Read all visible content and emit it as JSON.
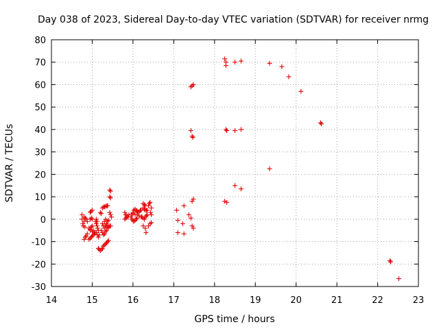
{
  "chart_data": {
    "type": "scatter",
    "title": "Day 038 of 2023, Sidereal Day-to-day VTEC variation (SDTVAR) for receiver nrmg",
    "xlabel": "GPS time / hours",
    "ylabel": "SDTVAR / TECUs",
    "xlim": [
      14,
      23
    ],
    "ylim": [
      -30,
      80
    ],
    "xticks": [
      14,
      15,
      16,
      17,
      18,
      19,
      20,
      21,
      22,
      23
    ],
    "yticks": [
      -30,
      -20,
      -10,
      0,
      10,
      20,
      30,
      40,
      50,
      60,
      70,
      80
    ],
    "grid": true,
    "marker": "+",
    "marker_color": "#e00000",
    "series": [
      {
        "name": "SDTVAR",
        "points": [
          [
            14.75,
            2
          ],
          [
            14.75,
            0
          ],
          [
            14.77,
            -2
          ],
          [
            14.78,
            -3
          ],
          [
            14.8,
            -1
          ],
          [
            14.82,
            -3.5
          ],
          [
            14.8,
            -9
          ],
          [
            14.83,
            -8
          ],
          [
            14.85,
            -7.5
          ],
          [
            14.88,
            -6.5
          ],
          [
            14.8,
            1
          ],
          [
            14.83,
            0.5
          ],
          [
            14.85,
            0
          ],
          [
            14.88,
            -1
          ],
          [
            14.95,
            3
          ],
          [
            14.97,
            3.5
          ],
          [
            15.0,
            4
          ],
          [
            14.95,
            0
          ],
          [
            14.98,
            0.5
          ],
          [
            15.0,
            0
          ],
          [
            14.92,
            -4
          ],
          [
            14.95,
            -4.5
          ],
          [
            14.98,
            -3.5
          ],
          [
            15.0,
            -3
          ],
          [
            14.92,
            -9
          ],
          [
            14.95,
            -8.5
          ],
          [
            14.98,
            -8
          ],
          [
            15.0,
            -7.5
          ],
          [
            15.03,
            -7
          ],
          [
            15.05,
            -6.5
          ],
          [
            15.07,
            -6
          ],
          [
            14.95,
            -5
          ],
          [
            15.0,
            -5.5
          ],
          [
            15.03,
            -5
          ],
          [
            15.08,
            -1
          ],
          [
            15.1,
            -2
          ],
          [
            15.12,
            -3
          ],
          [
            15.13,
            -4
          ],
          [
            15.15,
            -5
          ],
          [
            15.1,
            0
          ],
          [
            15.12,
            -1
          ],
          [
            15.1,
            -6
          ],
          [
            15.13,
            -7
          ],
          [
            15.15,
            -8
          ],
          [
            15.17,
            -7
          ],
          [
            15.15,
            -13
          ],
          [
            15.17,
            -13.5
          ],
          [
            15.2,
            -14
          ],
          [
            15.23,
            -13.5
          ],
          [
            15.25,
            -13
          ],
          [
            15.27,
            -12
          ],
          [
            15.3,
            -11.5
          ],
          [
            15.33,
            -11
          ],
          [
            15.35,
            -10.5
          ],
          [
            15.38,
            -10
          ],
          [
            15.4,
            -9.5
          ],
          [
            15.2,
            3
          ],
          [
            15.22,
            2.5
          ],
          [
            15.25,
            5
          ],
          [
            15.28,
            5.5
          ],
          [
            15.3,
            5.5
          ],
          [
            15.33,
            5.8
          ],
          [
            15.36,
            6
          ],
          [
            15.38,
            6
          ],
          [
            15.25,
            -2
          ],
          [
            15.27,
            -3
          ],
          [
            15.3,
            -4
          ],
          [
            15.32,
            -3
          ],
          [
            15.35,
            -2
          ],
          [
            15.37,
            -1
          ],
          [
            15.4,
            -0.5
          ],
          [
            15.22,
            -5
          ],
          [
            15.25,
            -6
          ],
          [
            15.28,
            -7
          ],
          [
            15.3,
            -6.5
          ],
          [
            15.33,
            -5.5
          ],
          [
            15.35,
            -5
          ],
          [
            15.38,
            -4
          ],
          [
            15.3,
            -1
          ],
          [
            15.33,
            0
          ],
          [
            15.35,
            -2.5
          ],
          [
            15.38,
            -3.5
          ],
          [
            15.4,
            -3.5
          ],
          [
            15.43,
            -3
          ],
          [
            15.45,
            -3
          ],
          [
            15.43,
            13
          ],
          [
            15.45,
            12.5
          ],
          [
            15.43,
            10
          ],
          [
            15.45,
            9.5
          ],
          [
            15.43,
            3
          ],
          [
            15.45,
            2
          ],
          [
            15.47,
            1
          ],
          [
            15.8,
            3
          ],
          [
            15.82,
            2
          ],
          [
            15.85,
            1.5
          ],
          [
            15.88,
            1
          ],
          [
            15.8,
            0
          ],
          [
            15.83,
            0.5
          ],
          [
            15.85,
            1
          ],
          [
            15.9,
            2
          ],
          [
            15.95,
            1
          ],
          [
            15.97,
            0
          ],
          [
            16.0,
            -0.5
          ],
          [
            16.02,
            -1
          ],
          [
            16.05,
            -0.5
          ],
          [
            16.08,
            0
          ],
          [
            16.1,
            0.5
          ],
          [
            16.0,
            3
          ],
          [
            16.02,
            4
          ],
          [
            16.05,
            4.5
          ],
          [
            16.08,
            4
          ],
          [
            16.1,
            3.5
          ],
          [
            16.12,
            3
          ],
          [
            16.15,
            3.5
          ],
          [
            16.18,
            4
          ],
          [
            16.2,
            4
          ],
          [
            15.97,
            2
          ],
          [
            16.0,
            2.5
          ],
          [
            16.05,
            2
          ],
          [
            16.1,
            2
          ],
          [
            16.15,
            1.5
          ],
          [
            16.2,
            1
          ],
          [
            16.25,
            7
          ],
          [
            16.28,
            6.5
          ],
          [
            16.3,
            6
          ],
          [
            16.25,
            5
          ],
          [
            16.28,
            4.5
          ],
          [
            16.3,
            4
          ],
          [
            16.33,
            4
          ],
          [
            16.22,
            1
          ],
          [
            16.25,
            0.5
          ],
          [
            16.28,
            0
          ],
          [
            16.3,
            1
          ],
          [
            16.33,
            1.5
          ],
          [
            16.35,
            2
          ],
          [
            16.35,
            4
          ],
          [
            16.38,
            6
          ],
          [
            16.4,
            7
          ],
          [
            16.42,
            7.5
          ],
          [
            16.45,
            5
          ],
          [
            16.43,
            3
          ],
          [
            16.45,
            2
          ],
          [
            16.25,
            -3
          ],
          [
            16.3,
            -4
          ],
          [
            16.32,
            -6
          ],
          [
            16.38,
            -3
          ],
          [
            16.42,
            -2
          ],
          [
            16.45,
            -1.5
          ],
          [
            17.07,
            4
          ],
          [
            17.1,
            -0.5
          ],
          [
            17.1,
            -6
          ],
          [
            17.22,
            -2
          ],
          [
            17.25,
            -6.5
          ],
          [
            17.25,
            6
          ],
          [
            17.37,
            2
          ],
          [
            17.42,
            0.5
          ],
          [
            17.45,
            8
          ],
          [
            17.48,
            9
          ],
          [
            17.45,
            -3
          ],
          [
            17.48,
            -4
          ],
          [
            17.42,
            59
          ],
          [
            17.45,
            59.5
          ],
          [
            17.48,
            60
          ],
          [
            17.42,
            39.5
          ],
          [
            17.45,
            37
          ],
          [
            17.47,
            36.5
          ],
          [
            18.25,
            71.5
          ],
          [
            18.28,
            70
          ],
          [
            18.28,
            68.5
          ],
          [
            18.5,
            70
          ],
          [
            18.65,
            70.5
          ],
          [
            18.28,
            40
          ],
          [
            18.3,
            39.5
          ],
          [
            18.5,
            39.5
          ],
          [
            18.65,
            40
          ],
          [
            18.25,
            8
          ],
          [
            18.3,
            7.5
          ],
          [
            18.5,
            15
          ],
          [
            18.65,
            13.5
          ],
          [
            19.35,
            69.5
          ],
          [
            19.65,
            68
          ],
          [
            19.82,
            63.5
          ],
          [
            20.12,
            57
          ],
          [
            19.35,
            22.5
          ],
          [
            20.6,
            43
          ],
          [
            20.62,
            42.5
          ],
          [
            22.3,
            -18.5
          ],
          [
            22.32,
            -19
          ],
          [
            22.52,
            -26.5
          ]
        ]
      }
    ]
  }
}
